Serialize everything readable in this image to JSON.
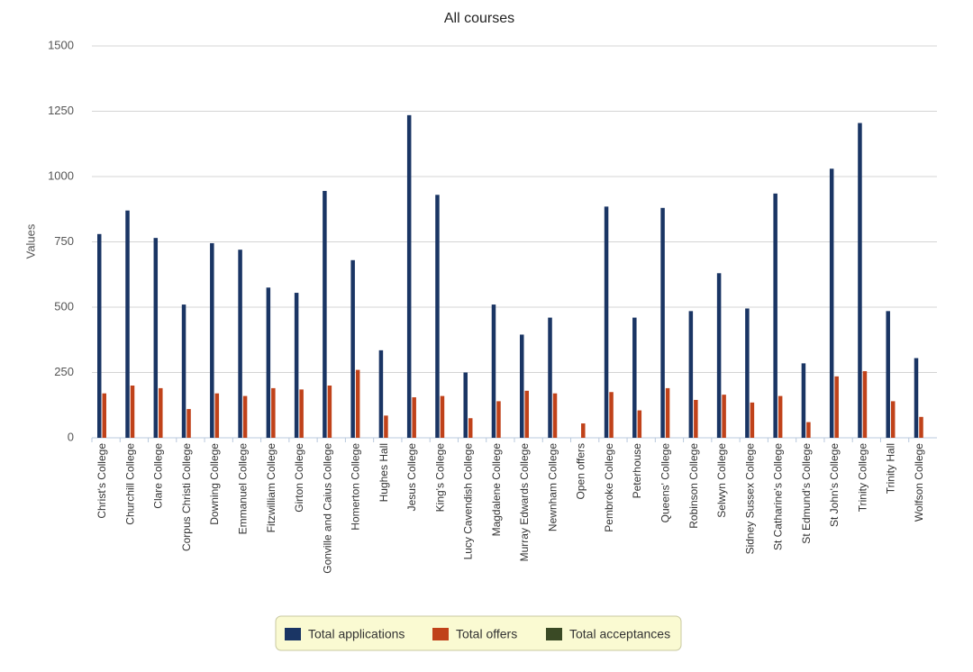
{
  "chart_data": {
    "type": "bar",
    "title": "All courses",
    "y_label": "Values",
    "categories": [
      "Christ's College",
      "Churchill College",
      "Clare College",
      "Corpus Christi College",
      "Downing College",
      "Emmanuel College",
      "Fitzwilliam College",
      "Girton College",
      "Gonville and Caius College",
      "Homerton College",
      "Hughes Hall",
      "Jesus College",
      "King's College",
      "Lucy Cavendish College",
      "Magdalene College",
      "Murray Edwards College",
      "Newnham College",
      "Open offers",
      "Pembroke College",
      "Peterhouse",
      "Queens' College",
      "Robinson College",
      "Selwyn College",
      "Sidney Sussex College",
      "St Catharine's College",
      "St Edmund's College",
      "St John's College",
      "Trinity College",
      "Trinity Hall",
      "Wolfson College"
    ],
    "series": [
      {
        "name": "Total applications",
        "color": "#1a3564",
        "values": [
          780,
          870,
          765,
          510,
          745,
          720,
          575,
          555,
          945,
          680,
          335,
          1235,
          930,
          250,
          510,
          395,
          460,
          null,
          885,
          460,
          880,
          485,
          630,
          495,
          935,
          285,
          1030,
          1205,
          485,
          305
        ]
      },
      {
        "name": "Total offers",
        "color": "#c0421a",
        "values": [
          170,
          200,
          190,
          110,
          170,
          160,
          190,
          185,
          200,
          260,
          85,
          155,
          160,
          75,
          140,
          180,
          170,
          55,
          175,
          105,
          190,
          145,
          165,
          135,
          160,
          60,
          235,
          255,
          140,
          80
        ]
      },
      {
        "name": "Total acceptances",
        "color": "#3a4a25",
        "values": [
          null,
          null,
          null,
          null,
          null,
          null,
          null,
          null,
          null,
          null,
          null,
          null,
          null,
          null,
          null,
          null,
          null,
          null,
          null,
          null,
          null,
          null,
          null,
          null,
          null,
          null,
          null,
          null,
          null,
          null
        ]
      }
    ],
    "ylim": [
      0,
      1500
    ],
    "yticks": [
      0,
      250,
      500,
      750,
      1000,
      1250,
      1500
    ],
    "grid": true,
    "legend": "bottom"
  }
}
